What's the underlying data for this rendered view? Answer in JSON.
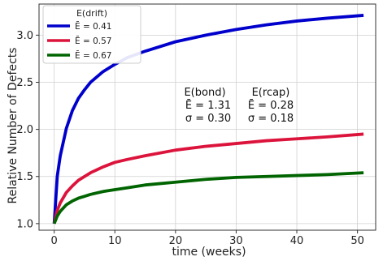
{
  "chart_data": {
    "type": "line",
    "xlabel": "time (weeks)",
    "ylabel": "Relative Number of Defects",
    "xlim": [
      -2.5,
      53
    ],
    "ylim": [
      0.93,
      3.33
    ],
    "xticks": [
      0,
      10,
      20,
      30,
      40,
      50
    ],
    "yticks": [
      1.0,
      1.5,
      2.0,
      2.5,
      3.0
    ],
    "ytick_labels": [
      "1.0",
      "1.5",
      "2.0",
      "2.5",
      "3.0"
    ],
    "grid": true,
    "legend": {
      "title": "E(drift)",
      "placement": "top-left"
    },
    "series": [
      {
        "name": "Ē = 0.41",
        "color": "#0000cc",
        "x": [
          0,
          0.5,
          1,
          2,
          3,
          4,
          5,
          6,
          8,
          10,
          12,
          15,
          20,
          25,
          30,
          35,
          40,
          45,
          51
        ],
        "y": [
          1.0,
          1.5,
          1.72,
          2.01,
          2.2,
          2.33,
          2.42,
          2.5,
          2.61,
          2.69,
          2.76,
          2.83,
          2.93,
          3.0,
          3.06,
          3.11,
          3.15,
          3.18,
          3.21
        ]
      },
      {
        "name": "Ē = 0.57",
        "color": "#dc143c",
        "x": [
          0,
          0.5,
          1,
          2,
          3,
          4,
          5,
          6,
          8,
          10,
          12,
          15,
          20,
          25,
          30,
          35,
          40,
          45,
          51
        ],
        "y": [
          1.0,
          1.14,
          1.22,
          1.33,
          1.4,
          1.46,
          1.5,
          1.54,
          1.6,
          1.65,
          1.68,
          1.72,
          1.78,
          1.82,
          1.85,
          1.88,
          1.9,
          1.92,
          1.95
        ]
      },
      {
        "name": "Ē = 0.67",
        "color": "#006400",
        "x": [
          0,
          0.5,
          1,
          2,
          3,
          4,
          5,
          6,
          8,
          10,
          12,
          15,
          20,
          25,
          30,
          35,
          40,
          45,
          51
        ],
        "y": [
          1.0,
          1.08,
          1.13,
          1.2,
          1.24,
          1.27,
          1.29,
          1.31,
          1.34,
          1.36,
          1.38,
          1.41,
          1.44,
          1.47,
          1.49,
          1.5,
          1.51,
          1.52,
          1.54
        ]
      }
    ],
    "annotations": [
      {
        "header": "E(bond)",
        "mean": "Ē = 1.31",
        "sigma": "σ = 0.30"
      },
      {
        "header": "E(rcap)",
        "mean": "Ē = 0.28",
        "sigma": "σ = 0.18"
      }
    ]
  }
}
